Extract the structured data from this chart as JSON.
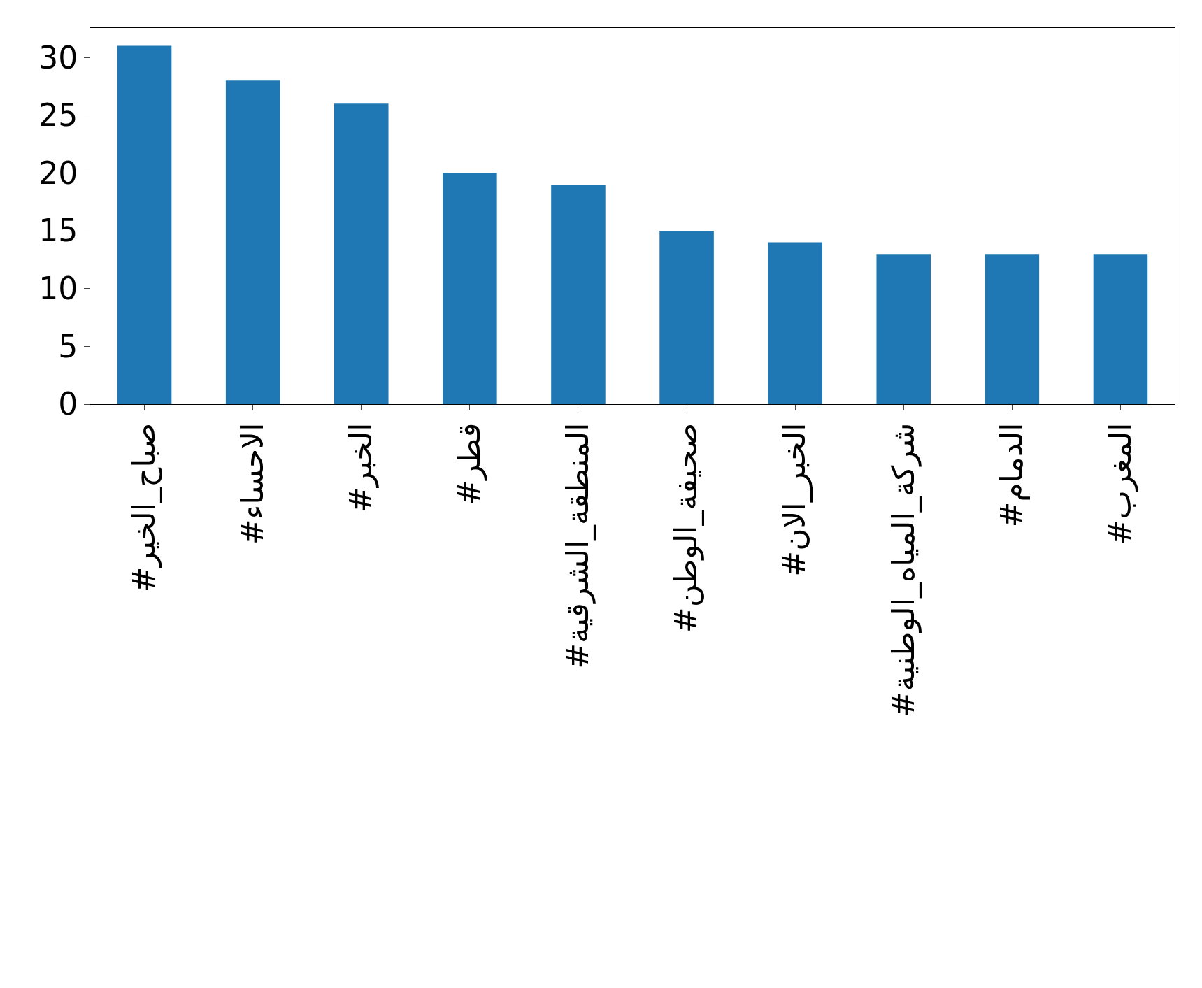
{
  "chart_data": {
    "type": "bar",
    "categories": [
      "#صباح_الخير",
      "#الاحساء",
      "#الخبر",
      "#قطر",
      "#المنطقة_الشرقية",
      "#صحيفة_الوطن",
      "#الخبر_الان",
      "#شركة_المياه_الوطنية",
      "#الدمام",
      "#المغرب"
    ],
    "values": [
      31,
      28,
      26,
      20,
      19,
      15,
      14,
      13,
      13,
      13
    ],
    "color": "#1f77b4",
    "ylim": [
      0,
      32.55
    ],
    "yticks": [
      0,
      5,
      10,
      15,
      20,
      25,
      30
    ],
    "grid": false
  }
}
